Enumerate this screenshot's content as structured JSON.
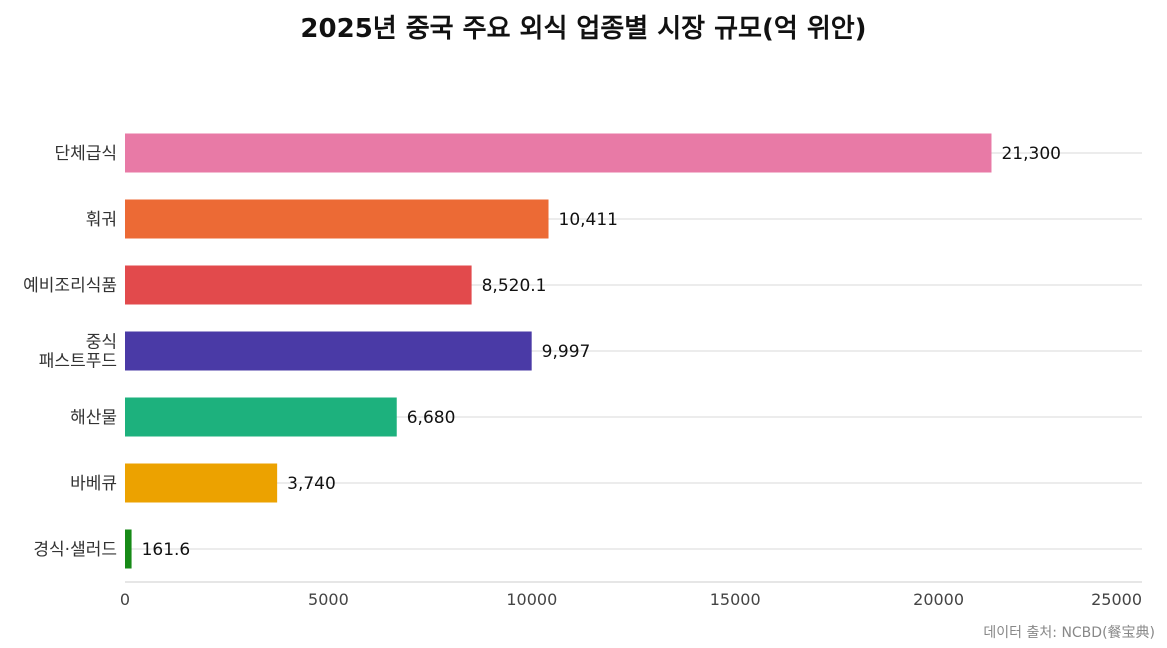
{
  "chart_data": {
    "type": "bar",
    "orientation": "horizontal",
    "title": "2025년 중국 주요 외식 업종별 시장 규모(억 위안)",
    "categories": [
      [
        "단체급식"
      ],
      [
        "훠궈"
      ],
      [
        "예비조리식품"
      ],
      [
        "중식",
        "패스트푸드"
      ],
      [
        "해산물"
      ],
      [
        "바베큐"
      ],
      [
        "경식·샐러드"
      ]
    ],
    "values": [
      21300,
      10411,
      8520.1,
      9997,
      6680,
      3740,
      161.6
    ],
    "value_labels": [
      "21,300",
      "10,411",
      "8,520.1",
      "9,997",
      "6,680",
      "3,740",
      "161.6"
    ],
    "colors": [
      "#e87aa6",
      "#ec6a35",
      "#e24a4c",
      "#4a3aa6",
      "#1db17d",
      "#eca200",
      "#178a17"
    ],
    "xlim": [
      0,
      25000
    ],
    "xticks": [
      "0",
      "5000",
      "10000",
      "15000",
      "20000",
      "25000"
    ],
    "grid": true,
    "legend": false
  },
  "source": "데이터 출처: NCBD(餐宝典)"
}
